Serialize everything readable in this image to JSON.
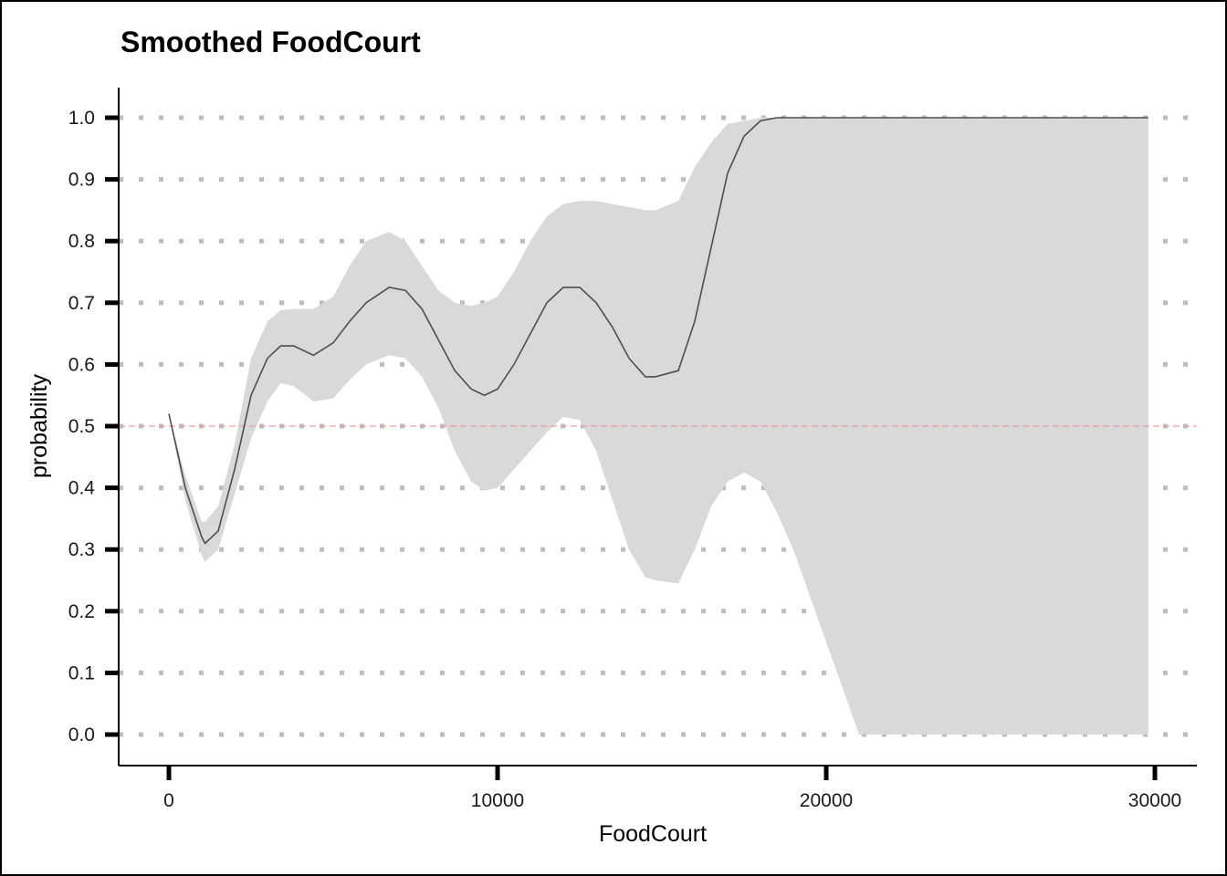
{
  "chart_data": {
    "type": "line",
    "title": "Smoothed FoodCourt",
    "xlabel": "FoodCourt",
    "ylabel": "probability",
    "xlim": [
      -1500,
      31300
    ],
    "ylim": [
      -0.05,
      1.05
    ],
    "x_ticks": [
      0,
      10000,
      20000,
      30000
    ],
    "x_tick_labels": [
      "0",
      "10000",
      "20000",
      "30000"
    ],
    "y_ticks": [
      0.0,
      0.1,
      0.2,
      0.3,
      0.4,
      0.5,
      0.6,
      0.7,
      0.8,
      0.9,
      1.0
    ],
    "y_tick_labels": [
      "0.0",
      "0.1",
      "0.2",
      "0.3",
      "0.4",
      "0.5",
      "0.6",
      "0.7",
      "0.8",
      "0.9",
      "1.0"
    ],
    "grid": "horizontal dotted",
    "reference_line": {
      "y": 0.5,
      "color": "#e8a0a0",
      "style": "dashed"
    },
    "colors": {
      "line": "#4d4d4d",
      "ribbon": "#d9d9d9",
      "grid": "#bdbdbd"
    },
    "series": [
      {
        "x": [
          0,
          500,
          1000,
          1100,
          1500,
          2000,
          2500,
          3000,
          3400,
          3800,
          4400,
          5000,
          5500,
          6000,
          6700,
          7200,
          7700,
          8200,
          8700,
          9200,
          9600,
          10000,
          10500,
          11000,
          11500,
          12000,
          12500,
          13000,
          13500,
          14000,
          14500,
          14800,
          15500,
          16000,
          16500,
          17000,
          17500,
          18000,
          18500,
          19000,
          20000,
          21000,
          22000,
          24000,
          26000,
          28000,
          29800
        ],
        "y": [
          0.52,
          0.4,
          0.32,
          0.31,
          0.33,
          0.43,
          0.55,
          0.61,
          0.63,
          0.63,
          0.615,
          0.635,
          0.67,
          0.7,
          0.725,
          0.72,
          0.69,
          0.64,
          0.59,
          0.56,
          0.55,
          0.56,
          0.6,
          0.65,
          0.7,
          0.725,
          0.725,
          0.7,
          0.66,
          0.61,
          0.58,
          0.58,
          0.59,
          0.67,
          0.79,
          0.91,
          0.97,
          0.995,
          1.0,
          1.0,
          1.0,
          1.0,
          1.0,
          1.0,
          1.0,
          1.0,
          1.0
        ],
        "ci_low": [
          0.52,
          0.38,
          0.29,
          0.28,
          0.3,
          0.39,
          0.48,
          0.54,
          0.57,
          0.565,
          0.54,
          0.545,
          0.575,
          0.6,
          0.615,
          0.61,
          0.58,
          0.53,
          0.46,
          0.41,
          0.395,
          0.4,
          0.43,
          0.46,
          0.49,
          0.515,
          0.51,
          0.46,
          0.38,
          0.3,
          0.255,
          0.25,
          0.245,
          0.3,
          0.37,
          0.41,
          0.425,
          0.41,
          0.36,
          0.3,
          0.15,
          0.0,
          0.0,
          0.0,
          0.0,
          0.0,
          0.0
        ],
        "ci_high": [
          0.52,
          0.42,
          0.345,
          0.345,
          0.37,
          0.47,
          0.61,
          0.67,
          0.688,
          0.69,
          0.69,
          0.71,
          0.76,
          0.8,
          0.815,
          0.8,
          0.76,
          0.72,
          0.7,
          0.695,
          0.7,
          0.71,
          0.75,
          0.8,
          0.84,
          0.86,
          0.865,
          0.865,
          0.86,
          0.855,
          0.85,
          0.85,
          0.865,
          0.92,
          0.96,
          0.99,
          0.995,
          1.0,
          1.0,
          1.0,
          1.0,
          1.0,
          1.0,
          1.0,
          1.0,
          1.0,
          1.0
        ]
      }
    ]
  }
}
